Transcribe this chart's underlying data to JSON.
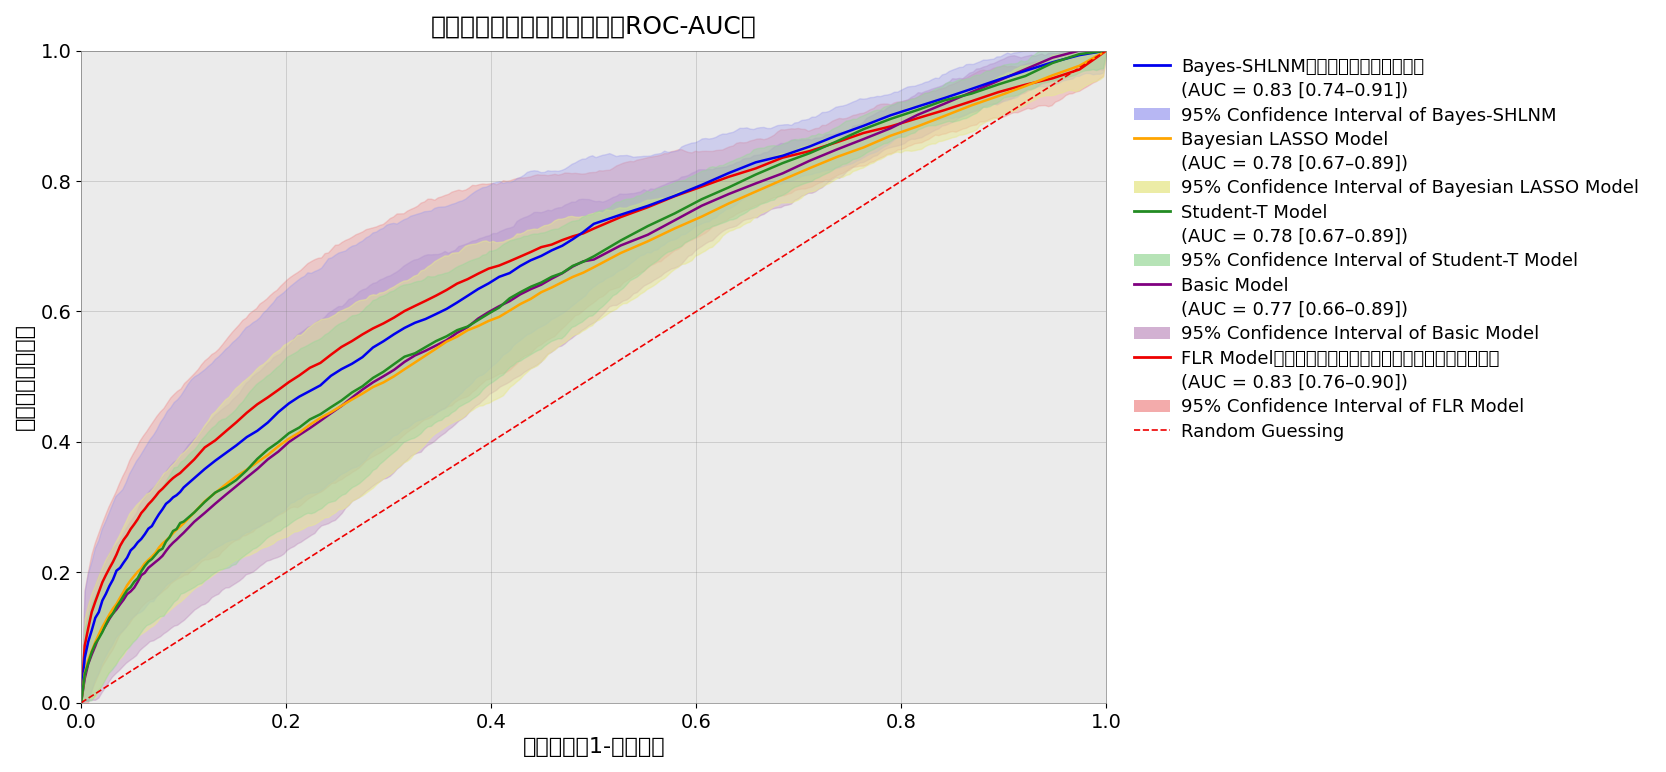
{
  "title": "受信者動作特性曲線下面積（ROC-AUC）",
  "xlabel": "偽陽性率（1-特異度）",
  "ylabel": "真陽性率（感度）",
  "title_fontsize": 18,
  "label_fontsize": 16,
  "tick_fontsize": 14,
  "legend_fontsize": 13,
  "models": {
    "bayes_shlnm": {
      "color": "#0000EE",
      "ci_color": "#9999EE",
      "ci_alpha": 0.35,
      "label": "Bayes-SHLNM（今回開発したモデル）",
      "label2": "(AUC = 0.83 [0.74–0.91])",
      "ci_label": "95% Confidence Interval of Bayes-SHLNM"
    },
    "bayesian_lasso": {
      "color": "#FFA500",
      "ci_color": "#E8E890",
      "ci_alpha": 0.5,
      "label": "Bayesian LASSO Model",
      "label2": "(AUC = 0.78 [0.67–0.89])",
      "ci_label": "95% Confidence Interval of Bayesian LASSO Model"
    },
    "student_t": {
      "color": "#228B22",
      "ci_color": "#98D898",
      "ci_alpha": 0.4,
      "label": "Student-T Model",
      "label2": "(AUC = 0.78 [0.67–0.89])",
      "ci_label": "95% Confidence Interval of Student-T Model"
    },
    "basic": {
      "color": "#800080",
      "ci_color": "#C090C0",
      "ci_alpha": 0.4,
      "label": "Basic Model",
      "label2": "(AUC = 0.77 [0.66–0.89])",
      "ci_label": "95% Confidence Interval of Basic Model"
    },
    "flr": {
      "color": "#EE0000",
      "ci_color": "#EE8888",
      "ci_alpha": 0.35,
      "label": "FLR Model（頻度論に基づくロジスティック回帰モデル）",
      "label2": "(AUC = 0.83 [0.76–0.90])",
      "ci_label": "95% Confidence Interval of FLR Model"
    }
  },
  "random_label": "Random Guessing",
  "background_color": "#ebebeb",
  "figsize": [
    40,
    18.53
  ]
}
